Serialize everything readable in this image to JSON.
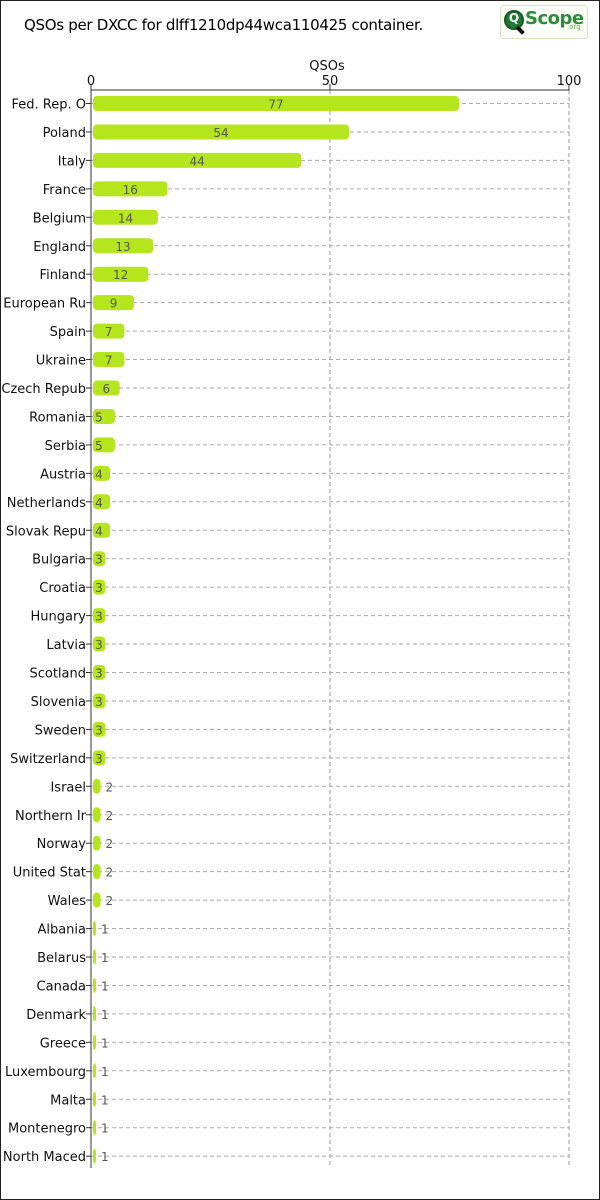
{
  "chart_data": {
    "type": "bar",
    "orientation": "horizontal",
    "title": "QSOs per DXCC for dlff1210dp44wca110425 container.",
    "xlabel": "QSOs",
    "xlim": [
      0,
      100
    ],
    "xticks": [
      0,
      50,
      100
    ],
    "grid": true,
    "bar_color": "#b5e61d",
    "categories": [
      "Fed. Rep. O",
      "Poland",
      "Italy",
      "France",
      "Belgium",
      "England",
      "Finland",
      "European Ru",
      "Spain",
      "Ukraine",
      "Czech Repub",
      "Romania",
      "Serbia",
      "Austria",
      "Netherlands",
      "Slovak Repu",
      "Bulgaria",
      "Croatia",
      "Hungary",
      "Latvia",
      "Scotland",
      "Slovenia",
      "Sweden",
      "Switzerland",
      "Israel",
      "Northern Ir",
      "Norway",
      "United Stat",
      "Wales",
      "Albania",
      "Belarus",
      "Canada",
      "Denmark",
      "Greece",
      "Luxembourg",
      "Malta",
      "Montenegro",
      "North Maced"
    ],
    "values": [
      77,
      54,
      44,
      16,
      14,
      13,
      12,
      9,
      7,
      7,
      6,
      5,
      5,
      4,
      4,
      4,
      3,
      3,
      3,
      3,
      3,
      3,
      3,
      3,
      2,
      2,
      2,
      2,
      2,
      1,
      1,
      1,
      1,
      1,
      1,
      1,
      1,
      1
    ]
  },
  "logo": {
    "text": "Scope",
    "suffix": ".org",
    "badge": "Q"
  }
}
